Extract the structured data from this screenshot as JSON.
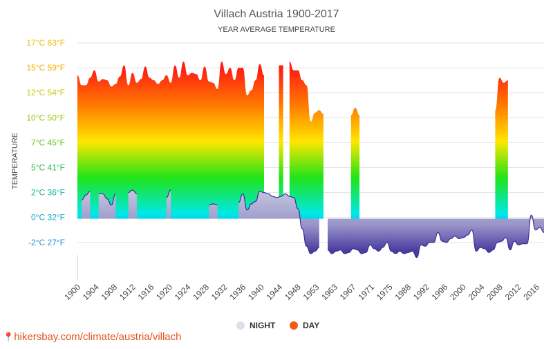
{
  "site": "hikersbay.com/climate/austria/villach",
  "colors": {
    "night_fill": "#5b4fa8",
    "night_stroke": "#3b2f93",
    "legend_night": "#dcdfea",
    "legend_day": "#f25a16",
    "grid": "#e3e3e3",
    "axis_text": "#444444"
  },
  "chart_data": {
    "type": "area",
    "title": "Villach Austria 1900-2017",
    "subtitle": "YEAR AVERAGE TEMPERATURE",
    "ylabel": "TEMPERATURE",
    "ylim": [
      -2,
      17
    ],
    "y_ticks": [
      {
        "value": 17,
        "label": "17°C 63°F",
        "color": "#e8c20c"
      },
      {
        "value": 15,
        "label": "15°C 59°F",
        "color": "#f0b000"
      },
      {
        "value": 13,
        "label": "12°C 54°F",
        "color": "#c6c70a"
      },
      {
        "value": 11,
        "label": "10°C 50°F",
        "color": "#93c80a"
      },
      {
        "value": 9,
        "label": "7°C 45°F",
        "color": "#5fc31e"
      },
      {
        "value": 7,
        "label": "5°C 41°F",
        "color": "#2fb84a"
      },
      {
        "value": 5,
        "label": "2°C 36°F",
        "color": "#16b39a"
      },
      {
        "value": 3,
        "label": "0°C 32°F",
        "color": "#14a7c7"
      },
      {
        "value": 1,
        "label": "-2°C 27°F",
        "color": "#2a8dd8"
      }
    ],
    "x_ticks": [
      "1900",
      "1904",
      "1908",
      "1912",
      "1916",
      "1920",
      "1924",
      "1928",
      "1932",
      "1936",
      "1940",
      "1944",
      "1948",
      "1953",
      "1963",
      "1967",
      "1971",
      "1975",
      "1988",
      "1992",
      "1996",
      "2000",
      "2004",
      "2008",
      "2012",
      "2016"
    ],
    "grid": true,
    "legend": {
      "position": "bottom-center",
      "items": [
        "NIGHT",
        "DAY"
      ]
    },
    "series": [
      {
        "name": "DAY",
        "segments": [
          [
            [
              0,
              14.4
            ],
            [
              1,
              13.6
            ],
            [
              2,
              13.6
            ],
            [
              3,
              14.2
            ],
            [
              4,
              14.8
            ],
            [
              5,
              13.9
            ],
            [
              6,
              14.1
            ],
            [
              7,
              14.0
            ],
            [
              8,
              13.5
            ],
            [
              9,
              13.7
            ],
            [
              10,
              14.3
            ],
            [
              11,
              15.2
            ],
            [
              12,
              13.6
            ],
            [
              13,
              14.6
            ],
            [
              14,
              13.8
            ],
            [
              15,
              14.1
            ],
            [
              16,
              15.1
            ],
            [
              17,
              14.2
            ],
            [
              18,
              14.0
            ],
            [
              19,
              13.7
            ],
            [
              20,
              14.0
            ],
            [
              21,
              14.4
            ],
            [
              22,
              13.8
            ],
            [
              23,
              15.2
            ],
            [
              24,
              14.2
            ],
            [
              25,
              15.5
            ],
            [
              26,
              14.4
            ],
            [
              27,
              14.6
            ],
            [
              28,
              14.5
            ],
            [
              29,
              14.0
            ],
            [
              30,
              15.1
            ],
            [
              31,
              13.9
            ],
            [
              32,
              13.8
            ],
            [
              33,
              13.3
            ],
            [
              34,
              15.5
            ],
            [
              35,
              14.5
            ],
            [
              36,
              15.0
            ],
            [
              37,
              14.0
            ],
            [
              38,
              15.0
            ],
            [
              39,
              15.0
            ],
            [
              40,
              12.8
            ],
            [
              41,
              13.2
            ],
            [
              42,
              14.0
            ],
            [
              43,
              15.3
            ],
            [
              44,
              14.4
            ]
          ],
          [
            [
              47.5,
              15.2
            ],
            [
              48.5,
              15.2
            ]
          ],
          [
            [
              50,
              15.5
            ],
            [
              51,
              14.8
            ],
            [
              52,
              14.8
            ],
            [
              53,
              14.0
            ],
            [
              54,
              13.6
            ],
            [
              55,
              10.7
            ],
            [
              56,
              11.4
            ],
            [
              57,
              11.6
            ],
            [
              58,
              11.3
            ]
          ],
          [
            [
              64.5,
              11.2
            ],
            [
              65.5,
              11.8
            ],
            [
              66.5,
              11.2
            ]
          ],
          [
            [
              98.5,
              11.6
            ],
            [
              99.5,
              14.2
            ],
            [
              100.5,
              13.8
            ],
            [
              101.5,
              14.0
            ]
          ]
        ]
      },
      {
        "name": "NIGHT",
        "segments": [
          [
            [
              1,
              4.4
            ],
            [
              2,
              4.8
            ],
            [
              3,
              5.1
            ]
          ],
          [
            [
              5,
              4.9
            ],
            [
              6,
              4.9
            ],
            [
              7,
              4.5
            ],
            [
              8,
              4.0
            ],
            [
              9,
              4.9
            ]
          ],
          [
            [
              12,
              5.0
            ],
            [
              13,
              5.2
            ],
            [
              14,
              4.9
            ]
          ],
          [
            [
              21,
              4.6
            ],
            [
              22,
              5.2
            ]
          ],
          [
            [
              31,
              4.0
            ],
            [
              32,
              4.1
            ],
            [
              33,
              4.0
            ]
          ],
          [
            [
              38,
              4.2
            ],
            [
              39,
              4.9
            ],
            [
              40,
              3.6
            ],
            [
              41,
              4.1
            ],
            [
              42,
              4.3
            ],
            [
              43,
              5.1
            ],
            [
              44,
              5.0
            ],
            [
              45,
              4.9
            ],
            [
              46,
              4.7
            ],
            [
              47,
              4.6
            ],
            [
              48,
              4.7
            ],
            [
              49,
              4.9
            ],
            [
              50,
              4.7
            ],
            [
              51,
              4.6
            ],
            [
              52,
              3.7
            ],
            [
              53,
              2.1
            ],
            [
              54,
              0.7
            ],
            [
              55,
              0.1
            ],
            [
              56,
              0.3
            ],
            [
              57,
              0.6
            ]
          ],
          [
            [
              59,
              0.4
            ],
            [
              60,
              0.1
            ],
            [
              61,
              0.3
            ],
            [
              62,
              0.4
            ],
            [
              63,
              0.1
            ],
            [
              64,
              0.2
            ],
            [
              65,
              0.5
            ],
            [
              66,
              0.4
            ],
            [
              67,
              0.1
            ],
            [
              68,
              0.2
            ],
            [
              69,
              0.8
            ],
            [
              70,
              0.5
            ],
            [
              71,
              0.3
            ],
            [
              72,
              0.6
            ],
            [
              73,
              1.0
            ],
            [
              74,
              0.3
            ],
            [
              75,
              0.1
            ],
            [
              76,
              0.3
            ],
            [
              77,
              0.1
            ],
            [
              78,
              0.2
            ],
            [
              79,
              0.3
            ],
            [
              80,
              -0.2
            ],
            [
              81,
              0.8
            ],
            [
              82,
              0.7
            ],
            [
              83,
              1.0
            ],
            [
              84,
              1.0
            ],
            [
              85,
              1.8
            ],
            [
              86,
              1.1
            ],
            [
              87,
              1.0
            ],
            [
              88,
              1.3
            ],
            [
              89,
              1.5
            ],
            [
              90,
              1.3
            ],
            [
              91,
              1.4
            ],
            [
              92,
              1.6
            ],
            [
              93,
              2.0
            ],
            [
              94,
              0.3
            ],
            [
              95,
              0.6
            ],
            [
              96,
              0.5
            ],
            [
              97,
              0.2
            ],
            [
              98,
              0.4
            ],
            [
              99,
              1.0
            ],
            [
              100,
              1.1
            ],
            [
              101,
              1.4
            ],
            [
              102,
              0.4
            ],
            [
              103,
              1.1
            ],
            [
              104,
              0.8
            ],
            [
              105,
              0.9
            ],
            [
              106,
              0.9
            ],
            [
              107,
              3.2
            ],
            [
              108,
              2.0
            ],
            [
              109,
              2.2
            ],
            [
              110,
              1.8
            ]
          ]
        ]
      }
    ]
  }
}
